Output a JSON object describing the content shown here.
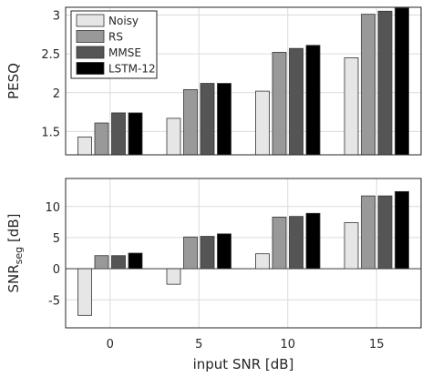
{
  "chart_data": [
    {
      "type": "bar",
      "categories": [
        "0",
        "5",
        "10",
        "15"
      ],
      "ylabel": "PESQ",
      "ylim": [
        1.2,
        3.1
      ],
      "yticks": [
        "1.5",
        "2",
        "2.5",
        "3"
      ],
      "grid": true,
      "legend_position": "top-left",
      "series": [
        {
          "name": "Noisy",
          "color": "#e6e6e6",
          "values": [
            1.43,
            1.67,
            2.02,
            2.45
          ]
        },
        {
          "name": "RS",
          "color": "#999999",
          "values": [
            1.61,
            2.04,
            2.52,
            3.01
          ]
        },
        {
          "name": "MMSE",
          "color": "#555555",
          "values": [
            1.74,
            2.12,
            2.57,
            3.05
          ]
        },
        {
          "name": "LSTM-12",
          "color": "#000000",
          "values": [
            1.74,
            2.12,
            2.61,
            3.09
          ]
        }
      ]
    },
    {
      "type": "bar",
      "categories": [
        "0",
        "5",
        "10",
        "15"
      ],
      "ylabel_main": "SNR",
      "ylabel_sub": "seg",
      "ylabel_unit": " [dB]",
      "xlabel": "input SNR [dB]",
      "ylim": [
        -9.5,
        14.5
      ],
      "yticks": [
        "-5",
        "0",
        "5",
        "10"
      ],
      "grid": true,
      "series": [
        {
          "name": "Noisy",
          "color": "#e6e6e6",
          "values": [
            -7.5,
            -2.5,
            2.4,
            7.4
          ]
        },
        {
          "name": "RS",
          "color": "#999999",
          "values": [
            2.1,
            5.1,
            8.3,
            11.7
          ]
        },
        {
          "name": "MMSE",
          "color": "#555555",
          "values": [
            2.1,
            5.2,
            8.4,
            11.7
          ]
        },
        {
          "name": "LSTM-12",
          "color": "#000000",
          "values": [
            2.5,
            5.6,
            8.9,
            12.4
          ]
        }
      ]
    }
  ]
}
